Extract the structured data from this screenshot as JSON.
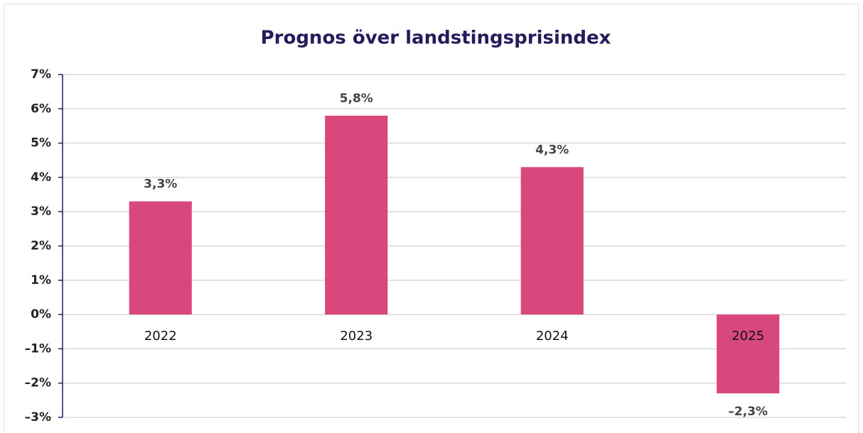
{
  "chart_data": {
    "type": "bar",
    "title": "Prognos över landstingsprisindex",
    "categories": [
      "2022",
      "2023",
      "2024",
      "2025"
    ],
    "values": [
      3.3,
      5.8,
      4.3,
      -2.3
    ],
    "value_labels": [
      "3,3%",
      "5,8%",
      "4,3%",
      "–2,3%"
    ],
    "color": "#d9487c",
    "ylim": [
      -3,
      7
    ],
    "yticks": [
      {
        "value": -3,
        "label": "–3%"
      },
      {
        "value": -2,
        "label": "–2%"
      },
      {
        "value": -1,
        "label": "–1%"
      },
      {
        "value": 0,
        "label": "0%"
      },
      {
        "value": 1,
        "label": "1%"
      },
      {
        "value": 2,
        "label": "2%"
      },
      {
        "value": 3,
        "label": "3%"
      },
      {
        "value": 4,
        "label": "4%"
      },
      {
        "value": 5,
        "label": "5%"
      },
      {
        "value": 6,
        "label": "6%"
      },
      {
        "value": 7,
        "label": "7%"
      }
    ],
    "grid": true
  }
}
